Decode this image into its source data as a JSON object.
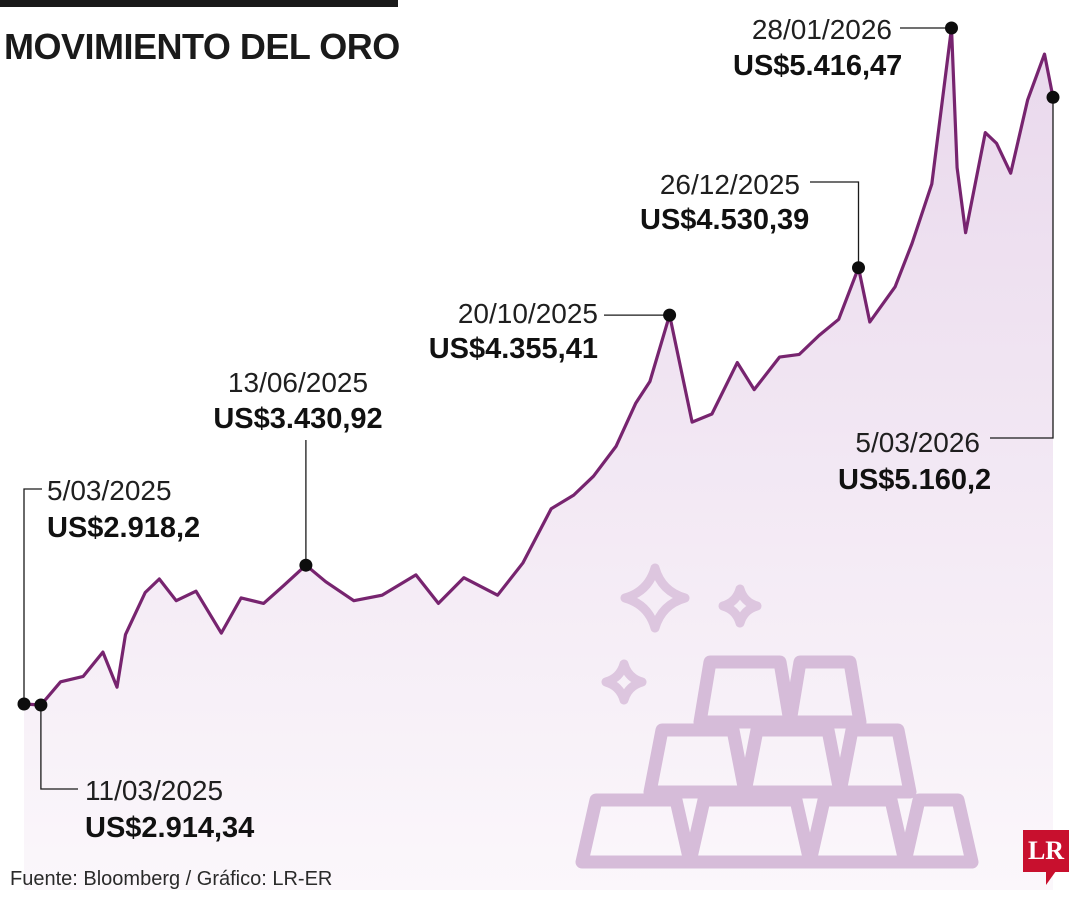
{
  "header": {
    "title": "MOVIMIENTO DEL ORO"
  },
  "footer": {
    "source": "Fuente: Bloomberg / Gráfico: LR-ER",
    "logo": "LR"
  },
  "colors": {
    "line": "#77246f",
    "area_top": "#e9d8ec",
    "area_bottom": "#fbf7fb",
    "bars": "#d6bcd9",
    "sparkles": "#ddc6df"
  },
  "decoration": {
    "icon": "gold-bars-icon",
    "sparkles": "sparkle-icon"
  },
  "chart_data": {
    "type": "area",
    "title": "MOVIMIENTO DEL ORO",
    "xlabel": "",
    "ylabel": "",
    "ylim": [
      2850,
      5500
    ],
    "x_range": [
      "2025-03-05",
      "2026-03-05"
    ],
    "grid": false,
    "legend": "none",
    "series": [
      {
        "values": [
          [
            "2025-03-05",
            2918.2
          ],
          [
            "2025-03-11",
            2914.34
          ],
          [
            "2025-03-18",
            3000
          ],
          [
            "2025-03-26",
            3020
          ],
          [
            "2025-04-02",
            3110
          ],
          [
            "2025-04-07",
            2980
          ],
          [
            "2025-04-10",
            3175
          ],
          [
            "2025-04-17",
            3330
          ],
          [
            "2025-04-22",
            3380
          ],
          [
            "2025-04-28",
            3300
          ],
          [
            "2025-05-05",
            3335
          ],
          [
            "2025-05-14",
            3180
          ],
          [
            "2025-05-21",
            3310
          ],
          [
            "2025-05-29",
            3290
          ],
          [
            "2025-06-05",
            3355
          ],
          [
            "2025-06-13",
            3430.92
          ],
          [
            "2025-06-20",
            3370
          ],
          [
            "2025-06-30",
            3300
          ],
          [
            "2025-07-10",
            3320
          ],
          [
            "2025-07-22",
            3395
          ],
          [
            "2025-07-30",
            3290
          ],
          [
            "2025-08-08",
            3385
          ],
          [
            "2025-08-20",
            3320
          ],
          [
            "2025-08-29",
            3440
          ],
          [
            "2025-09-08",
            3640
          ],
          [
            "2025-09-16",
            3690
          ],
          [
            "2025-09-23",
            3760
          ],
          [
            "2025-10-01",
            3870
          ],
          [
            "2025-10-08",
            4030
          ],
          [
            "2025-10-13",
            4110
          ],
          [
            "2025-10-20",
            4355.41
          ],
          [
            "2025-10-28",
            3960
          ],
          [
            "2025-11-04",
            3990
          ],
          [
            "2025-11-13",
            4180
          ],
          [
            "2025-11-19",
            4080
          ],
          [
            "2025-11-28",
            4200
          ],
          [
            "2025-12-05",
            4210
          ],
          [
            "2025-12-12",
            4280
          ],
          [
            "2025-12-19",
            4340
          ],
          [
            "2025-12-26",
            4530.39
          ],
          [
            "2025-12-30",
            4330
          ],
          [
            "2026-01-08",
            4460
          ],
          [
            "2026-01-14",
            4620
          ],
          [
            "2026-01-21",
            4840
          ],
          [
            "2026-01-28",
            5416.47
          ],
          [
            "2026-01-30",
            4900
          ],
          [
            "2026-02-02",
            4660
          ],
          [
            "2026-02-09",
            5030
          ],
          [
            "2026-02-13",
            4990
          ],
          [
            "2026-02-18",
            4880
          ],
          [
            "2026-02-24",
            5150
          ],
          [
            "2026-03-02",
            5320
          ],
          [
            "2026-03-05",
            5160.2
          ]
        ]
      }
    ],
    "annotations": [
      {
        "date": "5/03/2025",
        "value": "US$2.918,2",
        "x": "2025-03-05",
        "y": 2918.2
      },
      {
        "date": "11/03/2025",
        "value": "US$2.914,34",
        "x": "2025-03-11",
        "y": 2914.34
      },
      {
        "date": "13/06/2025",
        "value": "US$3.430,92",
        "x": "2025-06-13",
        "y": 3430.92
      },
      {
        "date": "20/10/2025",
        "value": "US$4.355,41",
        "x": "2025-10-20",
        "y": 4355.41
      },
      {
        "date": "26/12/2025",
        "value": "US$4.530,39",
        "x": "2025-12-26",
        "y": 4530.39
      },
      {
        "date": "28/01/2026",
        "value": "US$5.416,47",
        "x": "2026-01-28",
        "y": 5416.47
      },
      {
        "date": "5/03/2026",
        "value": "US$5.160,2",
        "x": "2026-03-05",
        "y": 5160.2
      }
    ]
  }
}
